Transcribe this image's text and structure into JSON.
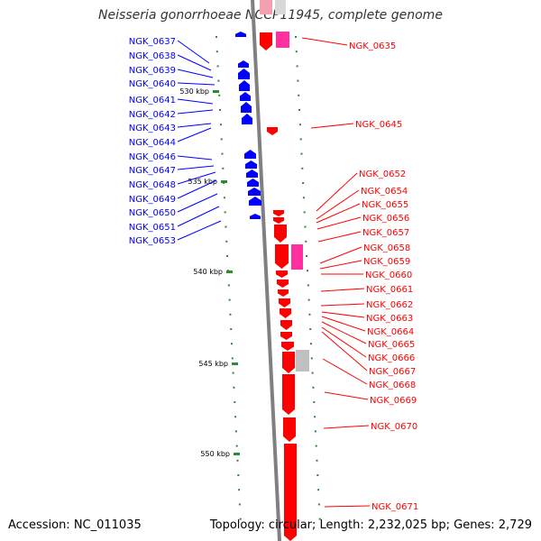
{
  "title": "Neisseria gonorrhoeae NCCP11945, complete genome",
  "accession": "Accession: NC_011035",
  "summary": "Topology: circular; Length: 2,232,025 bp; Genes: 2,729",
  "colors": {
    "forward_gene": "#0000ff",
    "reverse_gene": "#ff0000",
    "rna_gene": "#ff2fa0",
    "pseudo_gene": "#c0c0c0",
    "backbone": "#808080",
    "tick": "#2e8b2e"
  },
  "scale_labels": [
    "530 kbp",
    "535 kbp",
    "540 kbp",
    "545 kbp",
    "550 kbp"
  ],
  "left_genes": [
    "NGK_0637",
    "NGK_0638",
    "NGK_0639",
    "NGK_0640",
    "NGK_0641",
    "NGK_0642",
    "NGK_0643",
    "NGK_0644",
    "NGK_0646",
    "NGK_0647",
    "NGK_0648",
    "NGK_0649",
    "NGK_0650",
    "NGK_0651",
    "NGK_0653"
  ],
  "right_genes": [
    "NGK_0635",
    "NGK_0645",
    "NGK_0652",
    "NGK_0654",
    "NGK_0655",
    "NGK_0656",
    "NGK_0657",
    "NGK_0658",
    "NGK_0659",
    "NGK_0660",
    "NGK_0661",
    "NGK_0662",
    "NGK_0663",
    "NGK_0664",
    "NGK_0665",
    "NGK_0666",
    "NGK_0667",
    "NGK_0668",
    "NGK_0669",
    "NGK_0670",
    "NGK_0671"
  ]
}
